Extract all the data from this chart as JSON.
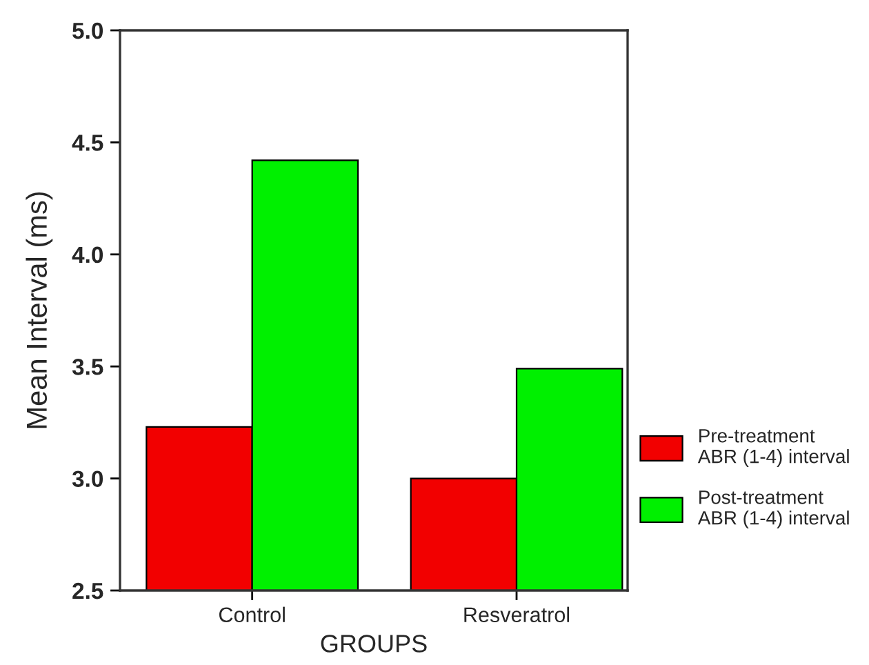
{
  "chart_data": {
    "type": "bar",
    "xlabel": "GROUPS",
    "ylabel": "Mean Interval (ms)",
    "categories": [
      "Control",
      "Resveratrol"
    ],
    "series": [
      {
        "name": "Pre-treatment\nABR (1-4) interval",
        "color": "#f20000",
        "values": [
          3.23,
          3.0
        ]
      },
      {
        "name": "Post-treatment\nABR (1-4) interval",
        "color": "#00f000",
        "values": [
          4.42,
          3.49
        ]
      }
    ],
    "ylim": [
      2.5,
      5.0
    ],
    "yticks": [
      {
        "value": 2.5,
        "label": "2.5"
      },
      {
        "value": 3.0,
        "label": "3.0"
      },
      {
        "value": 3.5,
        "label": "3.5"
      },
      {
        "value": 4.0,
        "label": "4.0"
      },
      {
        "value": 4.5,
        "label": "4.5"
      },
      {
        "value": 5.0,
        "label": "5.0"
      }
    ],
    "grid": false,
    "legend": "right"
  }
}
